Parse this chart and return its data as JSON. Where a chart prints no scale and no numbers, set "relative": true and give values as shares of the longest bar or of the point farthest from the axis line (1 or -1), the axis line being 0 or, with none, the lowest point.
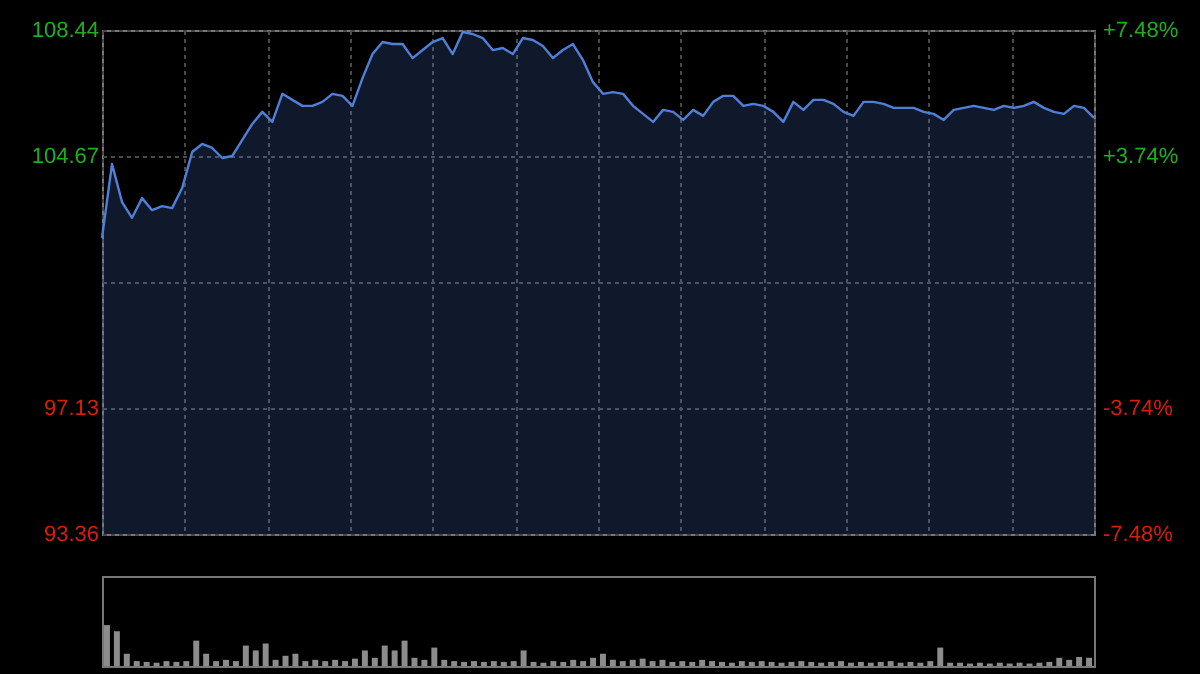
{
  "chart_data": [
    {
      "type": "area",
      "categories": [
        null,
        null,
        null,
        null,
        null,
        null,
        null,
        null,
        null,
        null,
        null,
        null,
        null,
        null,
        null,
        null,
        null,
        null,
        null,
        null,
        null,
        null,
        null,
        null,
        null,
        null,
        null,
        null,
        null,
        null,
        null,
        null,
        null,
        null,
        null,
        null,
        null,
        null,
        null,
        null,
        null,
        null,
        null,
        null,
        null,
        null,
        null,
        null,
        null,
        null,
        null,
        null,
        null,
        null,
        null,
        null,
        null,
        null,
        null,
        null,
        null,
        null,
        null,
        null,
        null,
        null,
        null,
        null,
        null,
        null,
        null,
        null,
        null,
        null,
        null,
        null,
        null,
        null,
        null,
        null,
        null,
        null,
        null,
        null,
        null,
        null,
        null,
        null,
        null,
        null,
        null,
        null,
        null,
        null,
        null,
        null,
        null,
        null,
        null,
        null
      ],
      "series": [
        {
          "color": "#4f7fd6",
          "values": [
            102.22,
            104.43,
            103.29,
            102.82,
            103.41,
            103.05,
            103.17,
            103.11,
            103.71,
            104.79,
            105.03,
            104.91,
            104.61,
            104.67,
            105.15,
            105.63,
            105.99,
            105.69,
            106.53,
            106.35,
            106.17,
            106.17,
            106.29,
            106.53,
            106.47,
            106.17,
            107.0,
            107.72,
            108.08,
            108.02,
            108.02,
            107.6,
            107.84,
            108.08,
            108.2,
            107.72,
            108.38,
            108.32,
            108.2,
            107.84,
            107.9,
            107.72,
            108.2,
            108.14,
            107.96,
            107.6,
            107.84,
            108.02,
            107.54,
            106.88,
            106.53,
            106.58,
            106.53,
            106.17,
            105.93,
            105.69,
            106.05,
            105.99,
            105.75,
            106.05,
            105.87,
            106.29,
            106.47,
            106.47,
            106.17,
            106.23,
            106.17,
            105.99,
            105.69,
            106.29,
            106.05,
            106.35,
            106.35,
            106.23,
            105.99,
            105.87,
            106.29,
            106.29,
            106.23,
            106.11,
            106.11,
            106.11,
            105.99,
            105.93,
            105.75,
            106.05,
            106.11,
            106.17,
            106.11,
            106.05,
            106.17,
            106.11,
            106.17,
            106.29,
            106.11,
            105.99,
            105.93,
            106.17,
            106.11,
            105.81
          ]
        }
      ],
      "ylim": [
        93.36,
        108.44
      ],
      "yticks": [
        93.36,
        97.13,
        {
          "value": 100.9,
          "label": null
        },
        104.67,
        108.44
      ],
      "y2lim": [
        -7.48,
        7.48
      ],
      "y2ticks": [
        {
          "value": -7.48,
          "label": "-7.48%"
        },
        {
          "value": -3.74,
          "label": "-3.74%"
        },
        {
          "value": 3.74,
          "label": "+3.74%"
        },
        {
          "value": 7.48,
          "label": "+7.48%"
        }
      ],
      "grid": true
    },
    {
      "type": "bar",
      "relative": true,
      "categories": [
        null,
        null,
        null,
        null,
        null,
        null,
        null,
        null,
        null,
        null,
        null,
        null,
        null,
        null,
        null,
        null,
        null,
        null,
        null,
        null,
        null,
        null,
        null,
        null,
        null,
        null,
        null,
        null,
        null,
        null,
        null,
        null,
        null,
        null,
        null,
        null,
        null,
        null,
        null,
        null,
        null,
        null,
        null,
        null,
        null,
        null,
        null,
        null,
        null,
        null,
        null,
        null,
        null,
        null,
        null,
        null,
        null,
        null,
        null,
        null,
        null,
        null,
        null,
        null,
        null,
        null,
        null,
        null,
        null,
        null,
        null,
        null,
        null,
        null,
        null,
        null,
        null,
        null,
        null,
        null,
        null,
        null,
        null,
        null,
        null,
        null,
        null,
        null,
        null,
        null,
        null,
        null,
        null,
        null,
        null,
        null,
        null,
        null,
        null,
        null
      ],
      "series": [
        {
          "color": "#8c8c8c",
          "values": [
            1.0,
            0.85,
            0.3,
            0.12,
            0.1,
            0.08,
            0.12,
            0.1,
            0.12,
            0.62,
            0.3,
            0.12,
            0.15,
            0.12,
            0.5,
            0.38,
            0.55,
            0.15,
            0.25,
            0.3,
            0.12,
            0.15,
            0.12,
            0.15,
            0.12,
            0.18,
            0.38,
            0.2,
            0.5,
            0.38,
            0.62,
            0.2,
            0.15,
            0.45,
            0.15,
            0.12,
            0.1,
            0.12,
            0.1,
            0.12,
            0.1,
            0.12,
            0.38,
            0.1,
            0.08,
            0.12,
            0.1,
            0.15,
            0.12,
            0.2,
            0.3,
            0.15,
            0.12,
            0.15,
            0.18,
            0.12,
            0.15,
            0.1,
            0.12,
            0.1,
            0.15,
            0.12,
            0.1,
            0.08,
            0.12,
            0.1,
            0.12,
            0.1,
            0.08,
            0.1,
            0.12,
            0.1,
            0.08,
            0.1,
            0.12,
            0.08,
            0.1,
            0.08,
            0.1,
            0.12,
            0.08,
            0.1,
            0.08,
            0.12,
            0.45,
            0.08,
            0.08,
            0.06,
            0.08,
            0.06,
            0.08,
            0.06,
            0.08,
            0.06,
            0.08,
            0.1,
            0.2,
            0.15,
            0.22,
            0.2
          ]
        }
      ]
    }
  ]
}
